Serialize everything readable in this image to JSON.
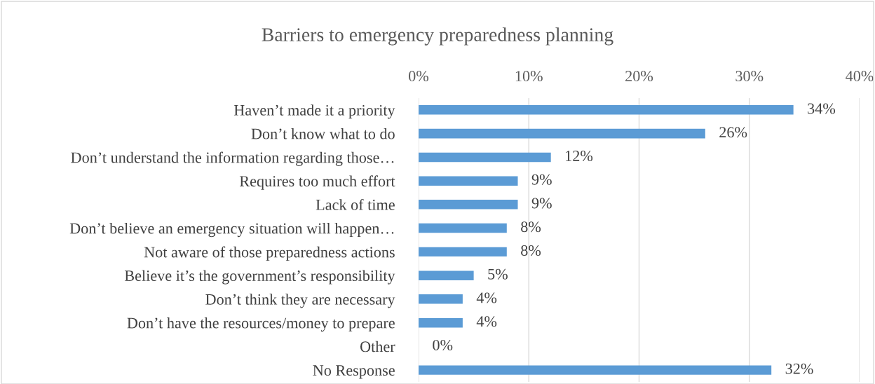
{
  "chart_data": {
    "type": "bar",
    "orientation": "horizontal",
    "title": "Barriers to emergency preparedness planning",
    "categories": [
      "Haven’t made it a priority",
      "Don’t know what to do",
      "Don’t understand the information regarding those…",
      "Requires too much effort",
      "Lack of time",
      "Don’t believe an emergency situation will happen…",
      "Not aware of those preparedness actions",
      "Believe it’s the government’s responsibility",
      "Don’t think they are necessary",
      "Don’t have the resources/money to prepare",
      "Other",
      "No Response"
    ],
    "values": [
      34,
      26,
      12,
      9,
      9,
      8,
      8,
      5,
      4,
      4,
      0,
      32
    ],
    "value_labels": [
      "34%",
      "26%",
      "12%",
      "9%",
      "9%",
      "8%",
      "8%",
      "5%",
      "4%",
      "4%",
      "0%",
      "32%"
    ],
    "color": "#5b9bd5",
    "xlim": [
      0,
      40
    ],
    "xticks": [
      {
        "value": 0,
        "label": "0%"
      },
      {
        "value": 10,
        "label": "10%"
      },
      {
        "value": 20,
        "label": "20%"
      },
      {
        "value": 30,
        "label": "30%"
      },
      {
        "value": 40,
        "label": "40%"
      }
    ],
    "grid": "x",
    "legend": false
  }
}
